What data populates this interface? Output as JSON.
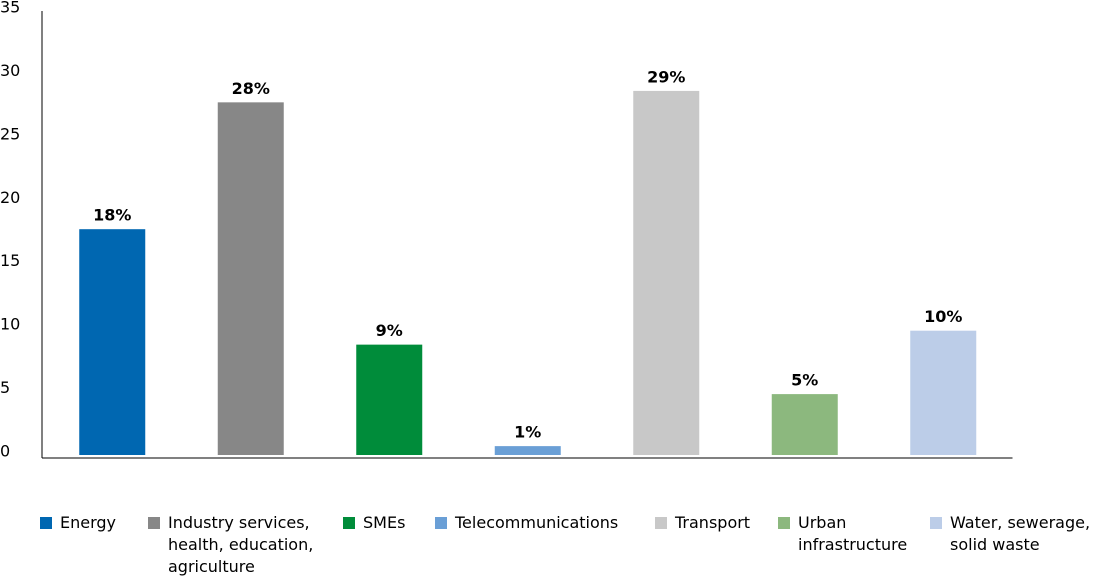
{
  "chart_data": {
    "type": "bar",
    "categories": [
      "Energy",
      "Industry services, health, education, agriculture",
      "SMEs",
      "Telecommunications",
      "Transport",
      "Urban infrastructure",
      "Water, sewerage, solid waste"
    ],
    "values": [
      17.8,
      27.8,
      8.7,
      0.7,
      28.7,
      4.8,
      9.8
    ],
    "value_labels": [
      "18%",
      "28%",
      "9%",
      "1%",
      "29%",
      "5%",
      "10%"
    ],
    "colors": [
      "#0067b1",
      "#878787",
      "#008c3a",
      "#6a9fd6",
      "#c8c8c8",
      "#8cb87e",
      "#bccde8"
    ],
    "ylim": [
      0,
      35
    ],
    "yticks": [
      0,
      5,
      10,
      15,
      20,
      25,
      30,
      35
    ],
    "grid": false,
    "legend": "bottom"
  }
}
